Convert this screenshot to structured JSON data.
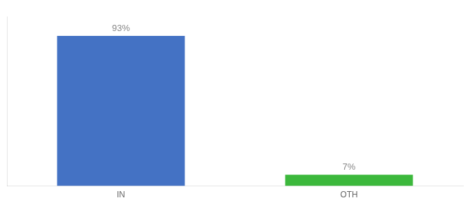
{
  "chart_data": {
    "type": "bar",
    "categories": [
      "IN",
      "OTH"
    ],
    "values": [
      93,
      7
    ],
    "value_labels": [
      "93%",
      "7%"
    ],
    "colors": [
      "#4472c4",
      "#3cb83c"
    ],
    "ylim": [
      0,
      105
    ],
    "data_labels": true,
    "tick_labels": "x",
    "grid": false
  }
}
